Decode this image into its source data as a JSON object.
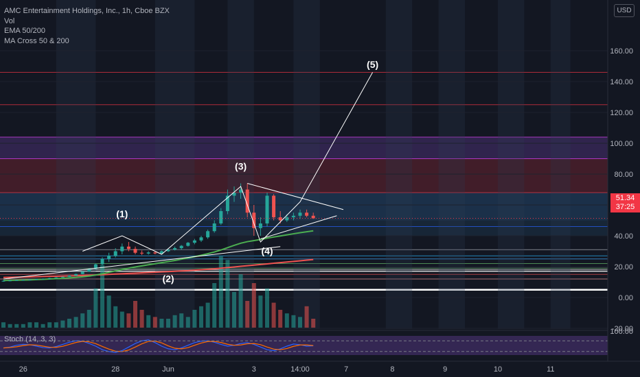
{
  "legend": {
    "title": "AMC Entertainment Holdings, Inc., 1h, Cboe BZX",
    "vol": "Vol",
    "ema": "EMA 50/200",
    "ma_cross": "MA Cross 50 & 200"
  },
  "stoch_label": "Stoch (14, 3, 3)",
  "currency": "USD",
  "last_price": "51.34",
  "countdown": "37:25",
  "colors": {
    "background": "#131722",
    "up": "#26a69a",
    "down": "#ef5350",
    "badge": "#f23645",
    "ema_fast": "#4caf50",
    "ema_slow": "#ef5350"
  },
  "chart_data": {
    "type": "candlestick",
    "y_ticks": [
      "160.00",
      "140.00",
      "120.00",
      "100.00",
      "80.00",
      "60.00",
      "40.00",
      "20.00",
      "0.00",
      "-20.00"
    ],
    "ylim": [
      -30,
      170
    ],
    "stoch_ticks": [
      "100.00"
    ],
    "x_ticks": [
      {
        "label": "26",
        "i": 3
      },
      {
        "label": "28",
        "i": 17
      },
      {
        "label": "Jun",
        "i": 25
      },
      {
        "label": "3",
        "i": 38
      },
      {
        "label": "14:00",
        "i": 45
      },
      {
        "label": "7",
        "i": 52
      },
      {
        "label": "8",
        "i": 59
      },
      {
        "label": "9",
        "i": 67
      },
      {
        "label": "10",
        "i": 75
      },
      {
        "label": "11",
        "i": 83
      }
    ],
    "wave_labels": [
      {
        "label": "(1)",
        "i": 18,
        "price": 52
      },
      {
        "label": "(2)",
        "i": 25,
        "price": 10
      },
      {
        "label": "(3)",
        "i": 36,
        "price": 83
      },
      {
        "label": "(4)",
        "i": 40,
        "price": 28
      },
      {
        "label": "(5)",
        "i": 56,
        "price": 149
      }
    ],
    "wave_path": [
      {
        "i": 12,
        "price": 30
      },
      {
        "i": 18,
        "price": 40
      },
      {
        "i": 24,
        "price": 28
      },
      {
        "i": 36,
        "price": 72
      },
      {
        "i": 39,
        "price": 36
      },
      {
        "i": 45,
        "price": 62
      },
      {
        "i": 56,
        "price": 146
      }
    ],
    "triangle": [
      {
        "i": 37,
        "price": 74
      },
      {
        "i": 50,
        "price": 57
      },
      {
        "i": 39,
        "price": 38
      },
      {
        "i": 49,
        "price": 53
      }
    ],
    "support_line": [
      {
        "i": 0,
        "price": 12
      },
      {
        "i": 42,
        "price": 33
      }
    ],
    "candles": [
      [
        10.5,
        11,
        10.2,
        10.8
      ],
      [
        10.8,
        11.2,
        10.5,
        11
      ],
      [
        11,
        11.4,
        10.8,
        11.2
      ],
      [
        11.2,
        11.6,
        11,
        11.4
      ],
      [
        11.4,
        11.8,
        11.1,
        11.6
      ],
      [
        11.6,
        12.2,
        11.4,
        12
      ],
      [
        12,
        12.4,
        11.8,
        12.2
      ],
      [
        12.2,
        12.8,
        12,
        12.6
      ],
      [
        12.6,
        13.2,
        12.4,
        13
      ],
      [
        13,
        13.6,
        12.8,
        13.4
      ],
      [
        13.4,
        14.5,
        13.2,
        14.2
      ],
      [
        14.2,
        15.5,
        14,
        15.2
      ],
      [
        15.2,
        17,
        15,
        16.8
      ],
      [
        16.8,
        19,
        16.5,
        18.5
      ],
      [
        18.5,
        22,
        18,
        21.5
      ],
      [
        21.5,
        26,
        21,
        25
      ],
      [
        25,
        29,
        23,
        27
      ],
      [
        27,
        32,
        26,
        30
      ],
      [
        30,
        35,
        28,
        33
      ],
      [
        33,
        36,
        30,
        31.5
      ],
      [
        31.5,
        33,
        28,
        29
      ],
      [
        29,
        30.5,
        27.5,
        28.5
      ],
      [
        28.5,
        30,
        27.8,
        29.2
      ],
      [
        29.2,
        30,
        28,
        28.6
      ],
      [
        28.6,
        30.5,
        28.2,
        30
      ],
      [
        30,
        31.5,
        29.5,
        31
      ],
      [
        31,
        33,
        30.5,
        32
      ],
      [
        32,
        34,
        31,
        33.5
      ],
      [
        33.5,
        36,
        33,
        35.5
      ],
      [
        35.5,
        38,
        34.5,
        37
      ],
      [
        37,
        40,
        36,
        39
      ],
      [
        39,
        44,
        38,
        43
      ],
      [
        43,
        50,
        42,
        48
      ],
      [
        48,
        58,
        47,
        56
      ],
      [
        56,
        70,
        54,
        66
      ],
      [
        66,
        72,
        62,
        68
      ],
      [
        68,
        74,
        64,
        70
      ],
      [
        70,
        74,
        52,
        55
      ],
      [
        55,
        60,
        40,
        45
      ],
      [
        45,
        52,
        40,
        48
      ],
      [
        48,
        68,
        46,
        66
      ],
      [
        66,
        67,
        50,
        52
      ],
      [
        52,
        56,
        48,
        50
      ],
      [
        50,
        54,
        49,
        52
      ],
      [
        52,
        55,
        50,
        53
      ],
      [
        53,
        57,
        51,
        55
      ],
      [
        55,
        57,
        52,
        53
      ],
      [
        53,
        55,
        51,
        51.34
      ]
    ],
    "volume": [
      3,
      2,
      2,
      2,
      3,
      3,
      2,
      3,
      3,
      4,
      5,
      6,
      8,
      10,
      22,
      35,
      18,
      12,
      9,
      8,
      15,
      10,
      7,
      6,
      5,
      5,
      7,
      8,
      6,
      10,
      12,
      14,
      25,
      40,
      38,
      20,
      30,
      15,
      25,
      18,
      22,
      14,
      10,
      8,
      7,
      6,
      12,
      5
    ],
    "stoch": [
      40,
      45,
      55,
      60,
      58,
      50,
      42,
      40,
      48,
      60,
      72,
      80,
      78,
      65,
      50,
      30,
      20,
      15,
      25,
      45,
      65,
      80,
      85,
      70,
      50,
      35,
      30,
      40,
      55,
      70,
      78,
      80,
      72,
      60,
      50,
      55,
      65,
      70,
      60,
      45,
      30,
      25,
      35,
      50,
      62,
      58,
      50,
      52
    ],
    "ema50": [
      11,
      11.1,
      11.2,
      11.3,
      11.4,
      11.6,
      11.8,
      12,
      12.2,
      12.4,
      12.7,
      13,
      13.4,
      13.9,
      14.6,
      15.4,
      16.3,
      17.2,
      18.1,
      19,
      19.8,
      20.5,
      21.2,
      21.9,
      22.6,
      23.3,
      24,
      24.8,
      25.6,
      26.5,
      27.4,
      28.4,
      29.5,
      30.8,
      32.3,
      33.8,
      35.2,
      36.2,
      36.9,
      37.6,
      38.5,
      39.2,
      39.9,
      40.6,
      41.3,
      42,
      42.6,
      43.2
    ],
    "ema200": [
      13,
      13.1,
      13.2,
      13.3,
      13.4,
      13.5,
      13.6,
      13.7,
      13.8,
      13.9,
      14,
      14.1,
      14.2,
      14.4,
      14.6,
      14.8,
      15,
      15.2,
      15.4,
      15.6,
      15.8,
      16,
      16.2,
      16.4,
      16.6,
      16.8,
      17,
      17.2,
      17.4,
      17.7,
      18,
      18.3,
      18.6,
      19,
      19.4,
      19.8,
      20.2,
      20.6,
      21,
      21.4,
      21.8,
      22.2,
      22.6,
      23,
      23.4,
      23.8,
      24.2,
      24.6
    ]
  }
}
